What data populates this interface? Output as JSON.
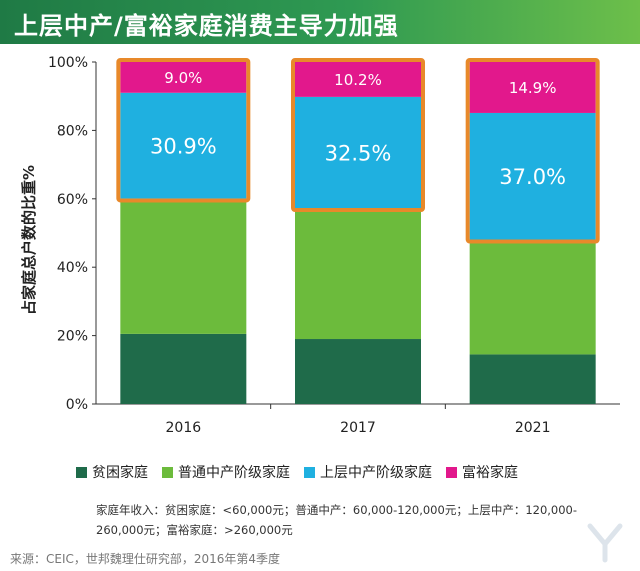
{
  "title": "上层中产/富裕家庭消费主导力加强",
  "chart_data": {
    "type": "bar",
    "stacked": true,
    "categories": [
      "2016",
      "2017",
      "2021"
    ],
    "ylabel": "占家庭总户数的比重%",
    "ylim": [
      0,
      100
    ],
    "yticks": [
      "0%",
      "20%",
      "40%",
      "60%",
      "80%",
      "100%"
    ],
    "series": [
      {
        "name": "贫困家庭",
        "color": "#1f6b4a",
        "values": [
          20.5,
          19.0,
          14.5
        ]
      },
      {
        "name": "普通中产阶级家庭",
        "color": "#6cbb3c",
        "values": [
          39.6,
          38.3,
          33.6
        ]
      },
      {
        "name": "上层中产阶级家庭",
        "color": "#1fb0e0",
        "values": [
          30.9,
          32.5,
          37.0
        ],
        "labels": [
          "30.9%",
          "32.5%",
          "37.0%"
        ]
      },
      {
        "name": "富裕家庭",
        "color": "#e2188c",
        "values": [
          9.0,
          10.2,
          14.9
        ],
        "labels": [
          "9.0%",
          "10.2%",
          "14.9%"
        ]
      }
    ],
    "highlight_color": "#e8892a",
    "grid": false
  },
  "note": "家庭年收入：贫困家庭：<60,000元；普通中产：60,000-120,000元；上层中产：120,000-260,000元；富裕家庭：>260,000元",
  "source": "来源：CEIC，世邦魏理仕研究部，2016年第4季度"
}
